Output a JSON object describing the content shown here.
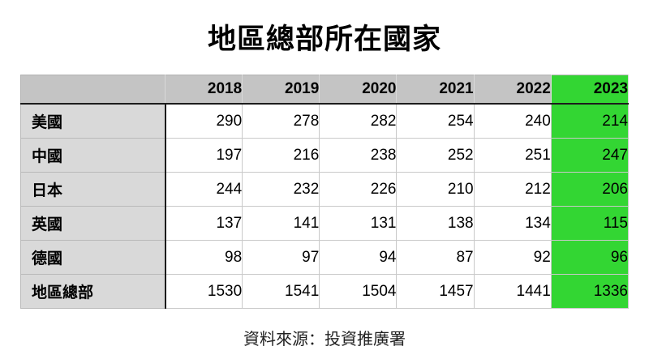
{
  "title": "地區總部所在國家",
  "source_note": "資料來源：投資推廣署",
  "colors": {
    "highlight_green": "#33d633",
    "header_bg": "#c4c4c4",
    "label_bg": "#d9d9d9",
    "grid_line": "#c9c9c9",
    "dark_line": "#1c1c1c"
  },
  "chart_data": {
    "type": "table",
    "title": "地區總部所在國家",
    "columns": [
      "2018",
      "2019",
      "2020",
      "2021",
      "2022",
      "2023"
    ],
    "highlighted_column": "2023",
    "rows": [
      {
        "label": "美國",
        "values": [
          290,
          278,
          282,
          254,
          240,
          214
        ]
      },
      {
        "label": "中國",
        "values": [
          197,
          216,
          238,
          252,
          251,
          247
        ]
      },
      {
        "label": "日本",
        "values": [
          244,
          232,
          226,
          210,
          212,
          206
        ]
      },
      {
        "label": "英國",
        "values": [
          137,
          141,
          131,
          138,
          134,
          115
        ]
      },
      {
        "label": "德國",
        "values": [
          98,
          97,
          94,
          87,
          92,
          96
        ]
      },
      {
        "label": "地區總部",
        "values": [
          1530,
          1541,
          1504,
          1457,
          1441,
          1336
        ]
      }
    ],
    "source_note": "資料來源：投資推廣署",
    "layout": {
      "grid": true,
      "legend": "none"
    }
  }
}
